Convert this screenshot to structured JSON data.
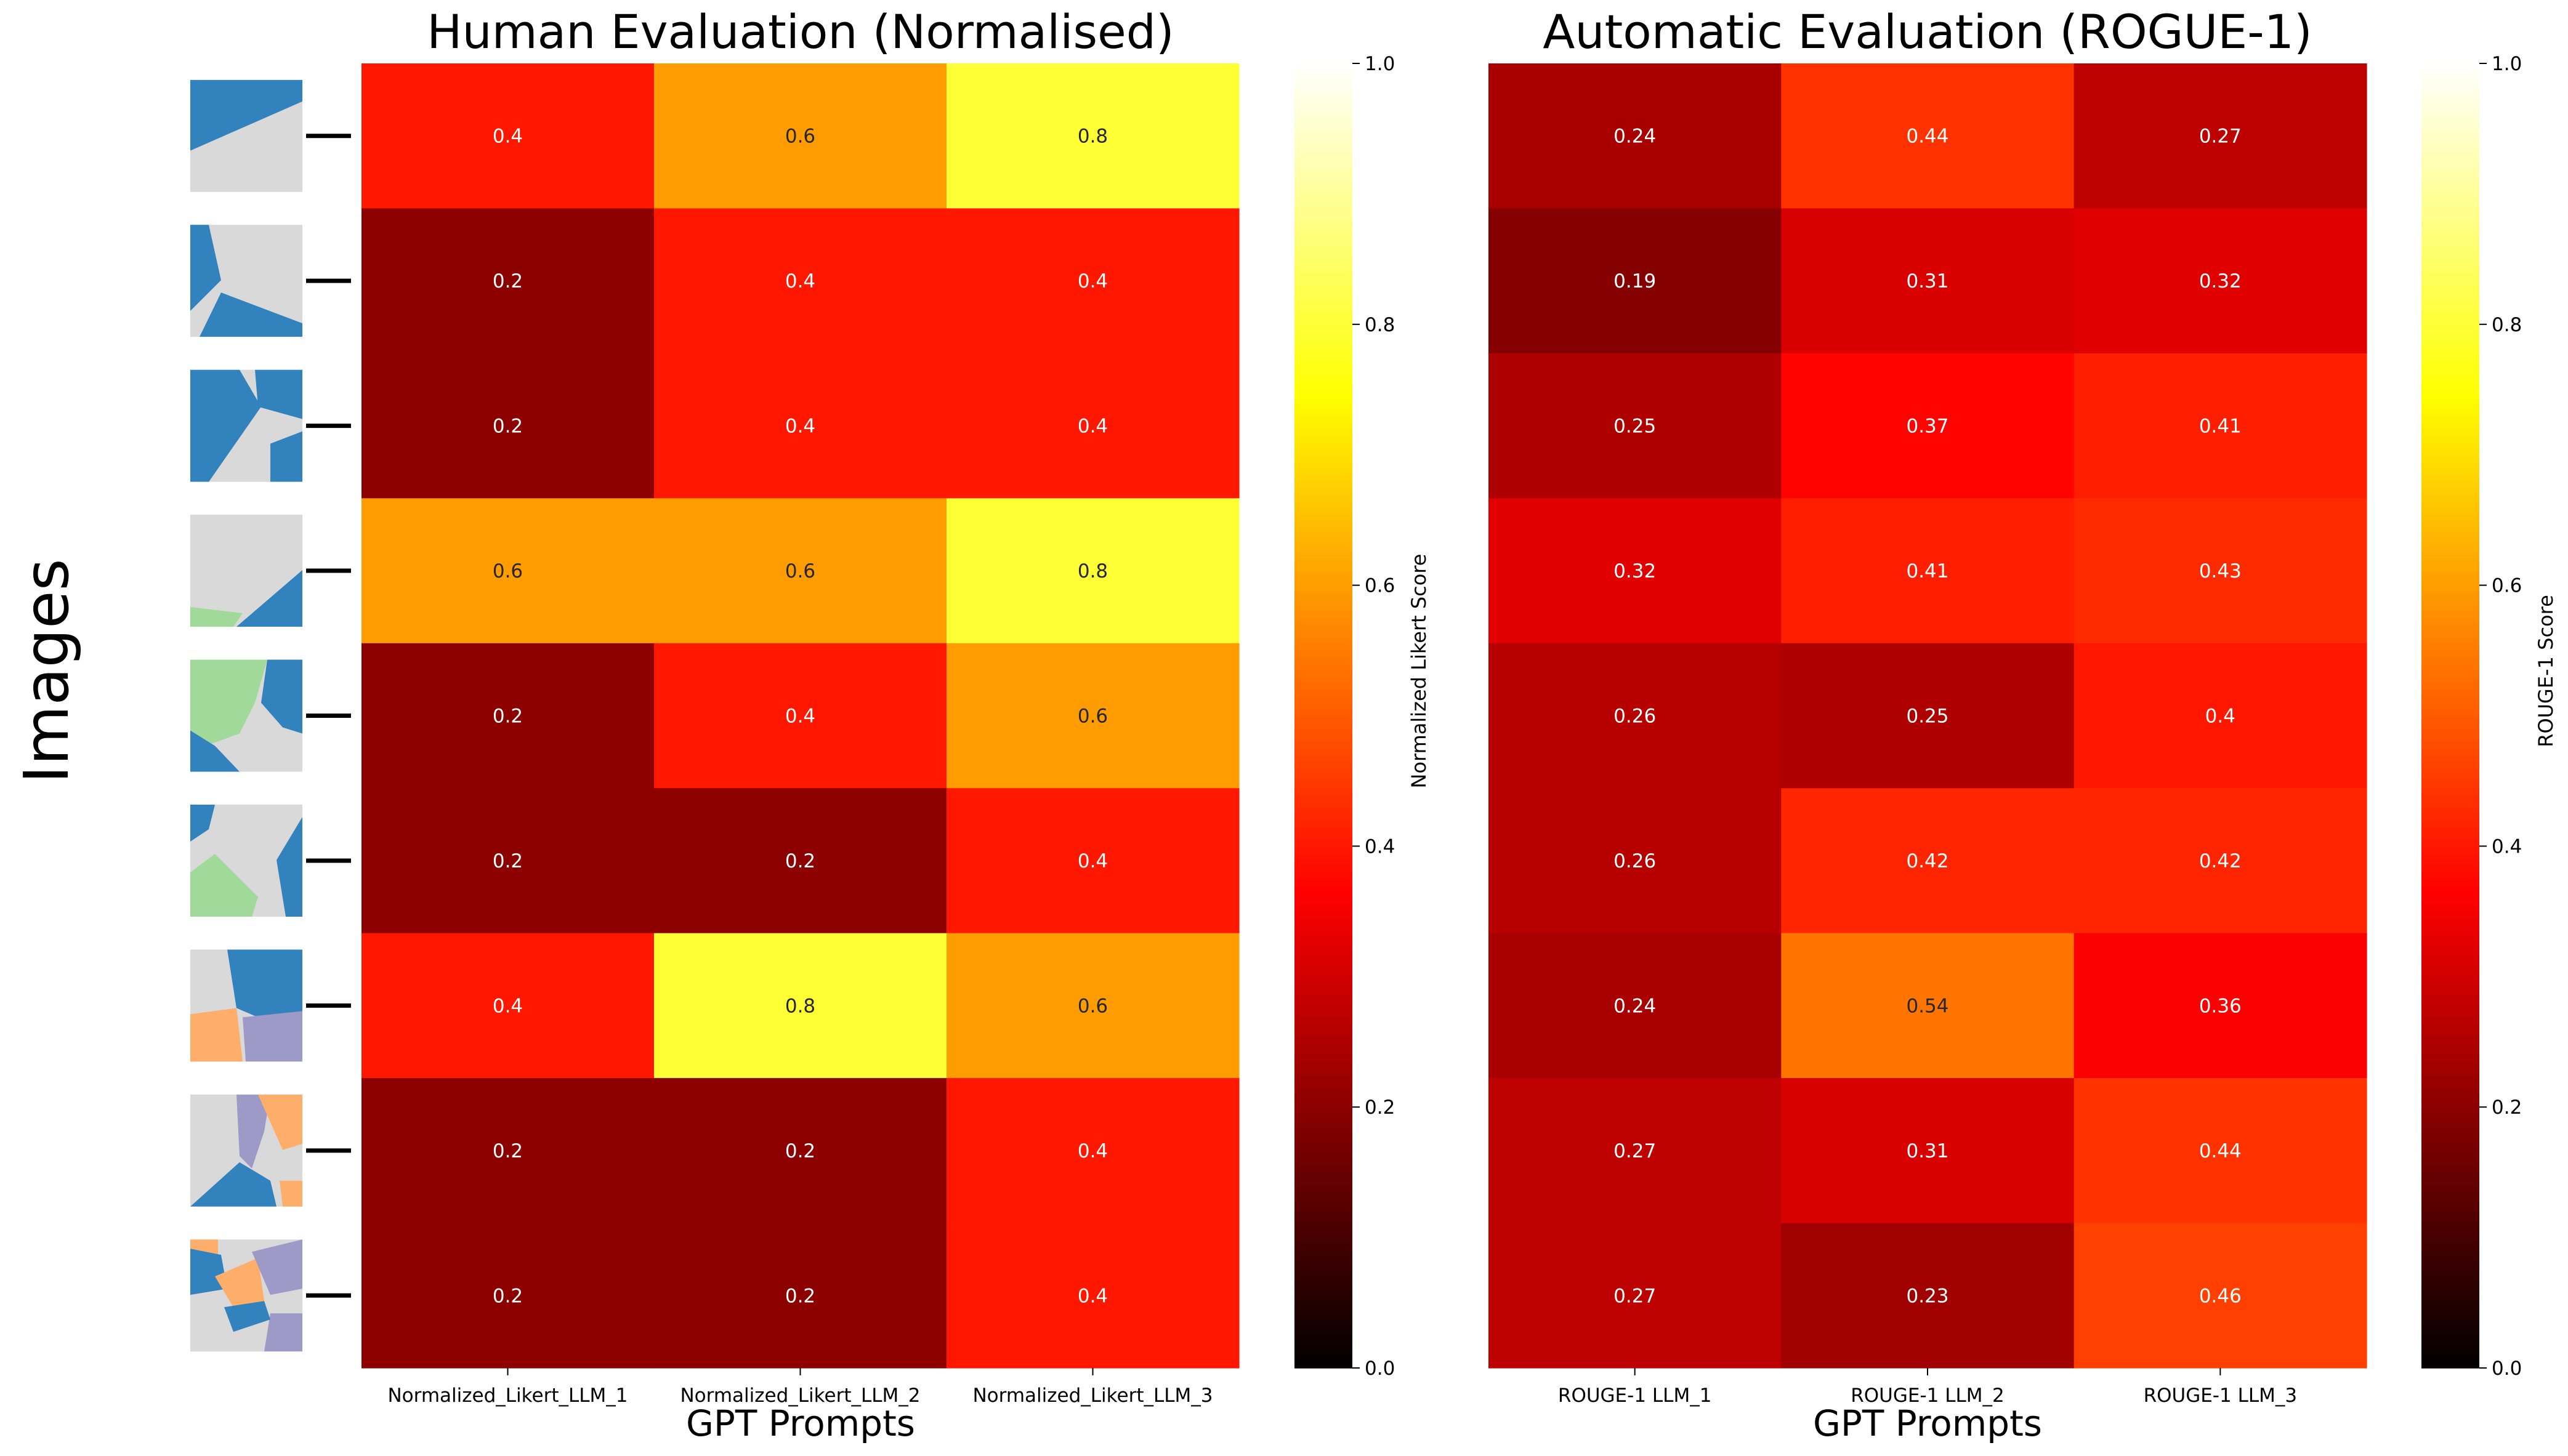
{
  "figure": {
    "side_label": "Images",
    "thumbnail_count": 9
  },
  "chart_data": [
    {
      "type": "heatmap",
      "title": "Human Evaluation (Normalised)",
      "xlabel": "GPT Prompts",
      "ylabel": "",
      "columns": [
        "Normalized_Likert_LLM_1",
        "Normalized_Likert_LLM_2",
        "Normalized_Likert_LLM_3"
      ],
      "rows": 9,
      "values": [
        [
          0.4,
          0.6,
          0.8
        ],
        [
          0.2,
          0.4,
          0.4
        ],
        [
          0.2,
          0.4,
          0.4
        ],
        [
          0.6,
          0.6,
          0.8
        ],
        [
          0.2,
          0.4,
          0.6
        ],
        [
          0.2,
          0.2,
          0.4
        ],
        [
          0.4,
          0.8,
          0.6
        ],
        [
          0.2,
          0.2,
          0.4
        ],
        [
          0.2,
          0.2,
          0.4
        ]
      ],
      "colormap": "hot",
      "colorbar": {
        "label": "Normalized Likert Score",
        "range": [
          0.0,
          1.0
        ],
        "ticks": [
          "0.0",
          "0.2",
          "0.4",
          "0.6",
          "0.8",
          "1.0"
        ]
      }
    },
    {
      "type": "heatmap",
      "title": "Automatic Evaluation (ROGUE-1)",
      "xlabel": "GPT Prompts",
      "ylabel": "",
      "columns": [
        "ROUGE-1 LLM_1",
        "ROUGE-1 LLM_2",
        "ROUGE-1 LLM_3"
      ],
      "rows": 9,
      "values": [
        [
          0.24,
          0.44,
          0.27
        ],
        [
          0.19,
          0.31,
          0.32
        ],
        [
          0.25,
          0.37,
          0.41
        ],
        [
          0.32,
          0.41,
          0.43
        ],
        [
          0.26,
          0.25,
          0.4
        ],
        [
          0.26,
          0.42,
          0.42
        ],
        [
          0.24,
          0.54,
          0.36
        ],
        [
          0.27,
          0.31,
          0.44
        ],
        [
          0.27,
          0.23,
          0.46
        ]
      ],
      "colormap": "hot",
      "colorbar": {
        "label": "ROUGE-1 Score",
        "range": [
          0.0,
          1.0
        ],
        "ticks": [
          "0.0",
          "0.2",
          "0.4",
          "0.6",
          "0.8",
          "1.0"
        ]
      }
    }
  ]
}
